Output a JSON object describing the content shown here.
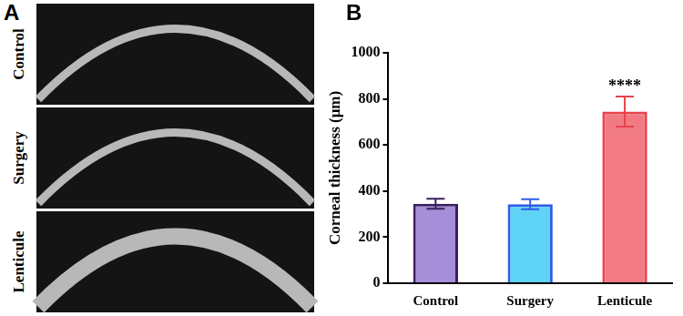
{
  "image_panel": {
    "label": "A",
    "rows": [
      "Control",
      "Surgery",
      "Lenticule"
    ]
  },
  "chart_panel_label": "B",
  "chart_data": {
    "type": "bar",
    "y_label": "Corneal thickness (μm)",
    "categories": [
      "Control",
      "Surgery",
      "Lenticule"
    ],
    "values": [
      345,
      343,
      745
    ],
    "errors": [
      22,
      22,
      65
    ],
    "colors": [
      "#a58fd9",
      "#5fd3f5",
      "#f27b83"
    ],
    "annotations": [
      {
        "category": "Lenticule",
        "text": "****"
      }
    ],
    "ylim": [
      0,
      1000
    ],
    "yticks": [
      0,
      200,
      400,
      600,
      800,
      1000
    ],
    "grid": false
  }
}
